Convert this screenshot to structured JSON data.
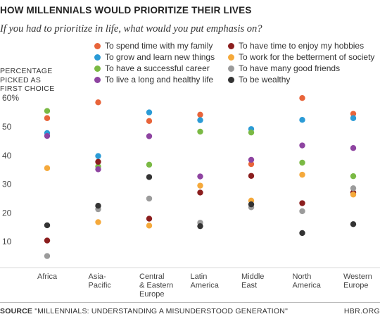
{
  "header": {
    "title": "HOW MILLENNIALS WOULD PRIORITIZE THEIR LIVES",
    "subtitle": "If you had to prioritize in life, what would you put emphasis on?"
  },
  "y_axis_label": [
    "PERCENTAGE",
    "PICKED AS",
    "FIRST CHOICE"
  ],
  "footer": {
    "source_label": "SOURCE",
    "source_text": " \"MILLENNIALS: UNDERSTANDING A MISUNDERSTOOD GENERATION\"",
    "brand": "HBR.ORG"
  },
  "chart_data": {
    "type": "scatter",
    "title": "HOW MILLENNIALS WOULD PRIORITIZE THEIR LIVES",
    "subtitle": "If you had to prioritize in life, what would you put emphasis on?",
    "ylabel": "PERCENTAGE PICKED AS FIRST CHOICE",
    "ylim": [
      0,
      60
    ],
    "yticks": [
      "10",
      "20",
      "30",
      "40",
      "50",
      "60%"
    ],
    "ytick_values": [
      10,
      20,
      30,
      40,
      50,
      60
    ],
    "grid": false,
    "legend_position": "top",
    "categories": [
      [
        "Africa"
      ],
      [
        "Asia-",
        "Pacific"
      ],
      [
        "Central",
        "& Eastern",
        "Europe"
      ],
      [
        "Latin",
        "America"
      ],
      [
        "Middle",
        "East"
      ],
      [
        "North",
        "America"
      ],
      [
        "Western",
        "Europe"
      ]
    ],
    "series": [
      {
        "name": "To spend time with my family",
        "color": "#e8643a",
        "values": [
          53,
          58.5,
          52,
          54.2,
          37,
          60,
          54.5
        ]
      },
      {
        "name": "To grow and learn new things",
        "color": "#2b9bd6",
        "values": [
          47.8,
          39.8,
          55,
          52.3,
          49.2,
          52.4,
          53
        ]
      },
      {
        "name": "To have a successful career",
        "color": "#7ab944",
        "values": [
          55.5,
          36.2,
          36.8,
          48.3,
          48,
          37.5,
          32.8
        ]
      },
      {
        "name": "To live a long and healthy life",
        "color": "#8e44a1",
        "values": [
          46.8,
          35.2,
          46.7,
          32.7,
          38.5,
          43.5,
          42.6
        ]
      },
      {
        "name": "To have time to enjoy my hobbies",
        "color": "#8b1e1e",
        "values": [
          10.4,
          37.8,
          18,
          27.1,
          32.9,
          23.4,
          27.1
        ]
      },
      {
        "name": "To work for the betterment of society",
        "color": "#f5a93b",
        "values": [
          35.6,
          16.8,
          15.6,
          29.5,
          24.3,
          33.3,
          26.4
        ]
      },
      {
        "name": "To have many good friends",
        "color": "#9b9b9b",
        "values": [
          5,
          21.3,
          25,
          16.6,
          22,
          20.6,
          28.6
        ]
      },
      {
        "name": "To be wealthy",
        "color": "#333333",
        "values": [
          15.7,
          22.5,
          32.5,
          15.4,
          23,
          13,
          16.1
        ]
      }
    ]
  }
}
